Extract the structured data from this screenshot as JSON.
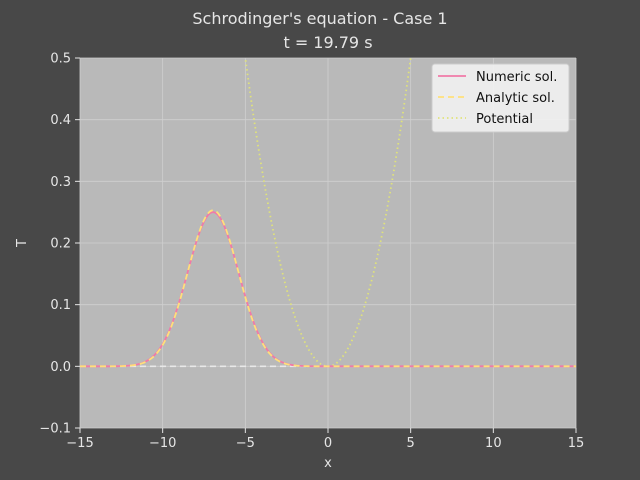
{
  "chart_data": {
    "type": "line",
    "title": "Schrodinger's equation - Case 1",
    "subtitle": "t = 19.79 s",
    "xlabel": "x",
    "ylabel": "T",
    "xlim": [
      -15,
      15
    ],
    "ylim": [
      -0.1,
      0.5
    ],
    "x_ticks": [
      -15,
      -10,
      -5,
      0,
      5,
      10,
      15
    ],
    "x_tick_labels": [
      "−15",
      "−10",
      "−5",
      "0",
      "5",
      "10",
      "15"
    ],
    "y_ticks": [
      -0.1,
      0.0,
      0.1,
      0.2,
      0.3,
      0.4,
      0.5
    ],
    "y_tick_labels": [
      "−0.1",
      "0.0",
      "0.1",
      "0.2",
      "0.3",
      "0.4",
      "0.5"
    ],
    "grid": true,
    "legend_position": "top-right",
    "colors": {
      "figure_bg": "#484848",
      "axes_bg": "#b9b9b9",
      "grid": "#cfcfcf",
      "numeric": "#f07aa8",
      "analytic": "#ffe07a",
      "potential": "#e0e37a",
      "zero_line": "#e8e8e8"
    },
    "series": [
      {
        "name": "Numeric sol.",
        "style": "solid",
        "kind": "gaussian",
        "center": -6.95,
        "amplitude": 0.25,
        "sigma": 1.55
      },
      {
        "name": "Analytic sol.",
        "style": "dashed",
        "kind": "gaussian",
        "center": -6.95,
        "amplitude": 0.253,
        "sigma": 1.53
      },
      {
        "name": "Potential",
        "style": "dotted",
        "kind": "parabola",
        "center": 0.0,
        "coefficient": 0.02
      }
    ]
  }
}
